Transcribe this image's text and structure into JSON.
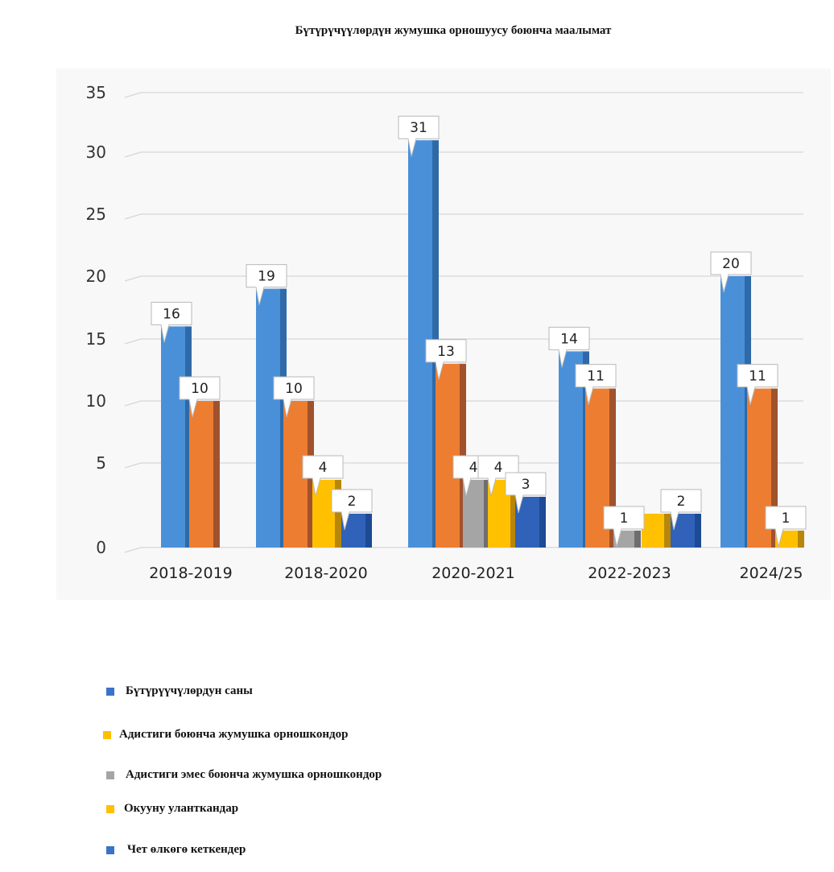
{
  "chart_data": {
    "type": "bar",
    "title": "Бүтүрүчүүлөрдүн жумушка орношуусу боюнча маалымат",
    "xlabel": "",
    "ylabel": "",
    "ylim": [
      0,
      35
    ],
    "yticks": [
      0,
      5,
      10,
      15,
      20,
      25,
      30,
      35
    ],
    "grid": true,
    "legend_position": "bottom-left",
    "categories": [
      "2018-2019",
      "2018-2020",
      "2020-2021",
      "2022-2023",
      "2024/25"
    ],
    "series": [
      {
        "name": "Бүтүрүүчүлөрдун саны",
        "color": "#4a90d9",
        "values": [
          16,
          19,
          31,
          14,
          20
        ],
        "labels": [
          "16",
          "19",
          "31",
          "14",
          "20"
        ]
      },
      {
        "name": "Адистиги боюнча жумушка орношкондор",
        "color": "#ed7d31",
        "values": [
          10,
          10,
          13,
          11,
          11
        ],
        "labels": [
          "10",
          "10",
          "13",
          "11",
          "11"
        ]
      },
      {
        "name": "Адистиги эмес боюнча жумушка орношкондор",
        "color": "#a5a5a5",
        "values": [
          null,
          null,
          4,
          1,
          null
        ],
        "labels": [
          null,
          null,
          "4",
          "1",
          null
        ]
      },
      {
        "name": "Окууну уланткандар",
        "color": "#ffc000",
        "values": [
          null,
          4,
          4,
          2,
          1
        ],
        "labels": [
          null,
          "4",
          "4",
          null,
          "1"
        ]
      },
      {
        "name": "Чет өлкөгө кеткендер",
        "color": "#2f62b8",
        "values": [
          null,
          2,
          3,
          2,
          null
        ],
        "labels": [
          null,
          "2",
          "3",
          "2",
          null
        ]
      }
    ]
  },
  "legend": {
    "items": [
      {
        "label": "Бүтүрүүчүлөрдун саны",
        "color": "#3a73c9"
      },
      {
        "label": "Адистиги боюнча жумушка орношкондор",
        "color": "#ffc000"
      },
      {
        "label": "Адистиги эмес боюнча жумушка орношкондор",
        "color": "#a5a5a5"
      },
      {
        "label": "Окууну уланткандар",
        "color": "#ffc000"
      },
      {
        "label": "Чет өлкөгө кеткендер",
        "color": "#3a73c9"
      }
    ]
  }
}
